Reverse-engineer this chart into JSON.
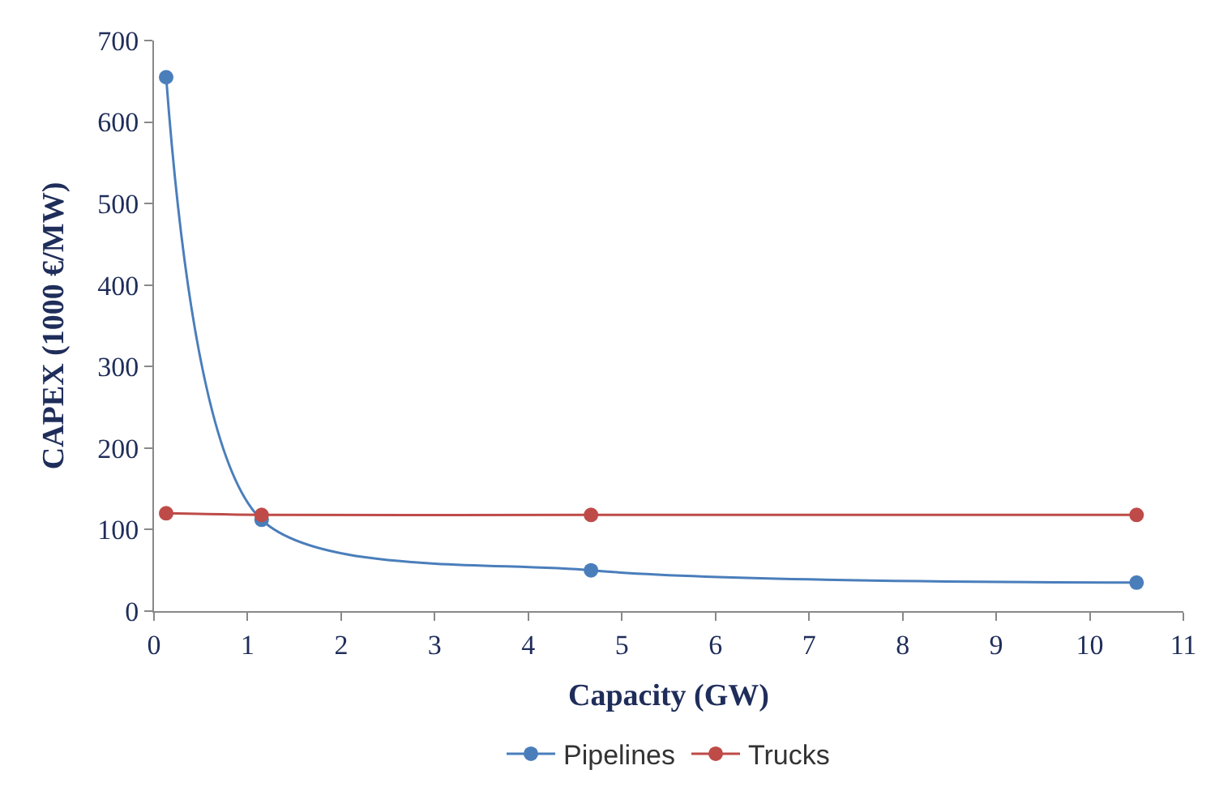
{
  "chart_data": {
    "type": "line",
    "xlabel": "Capacity (GW)",
    "ylabel": "CAPEX (1000 €/MW)",
    "series": [
      {
        "name": "Pipelines",
        "color": "#4a7ebb",
        "x": [
          0.13,
          1.15,
          4.67,
          10.5
        ],
        "values": [
          655,
          112,
          50,
          35
        ]
      },
      {
        "name": "Trucks",
        "color": "#be4b48",
        "x": [
          0.13,
          1.15,
          4.67,
          10.5
        ],
        "values": [
          120,
          118,
          118,
          118
        ]
      }
    ],
    "xlim": [
      0,
      11
    ],
    "xticks": [
      0,
      1,
      2,
      3,
      4,
      5,
      6,
      7,
      8,
      9,
      10,
      11
    ],
    "ylim": [
      0,
      700
    ],
    "yticks": [
      0,
      100,
      200,
      300,
      400,
      500,
      600,
      700
    ],
    "legend": "bottom",
    "marker": "circle",
    "line_style": "solid"
  }
}
